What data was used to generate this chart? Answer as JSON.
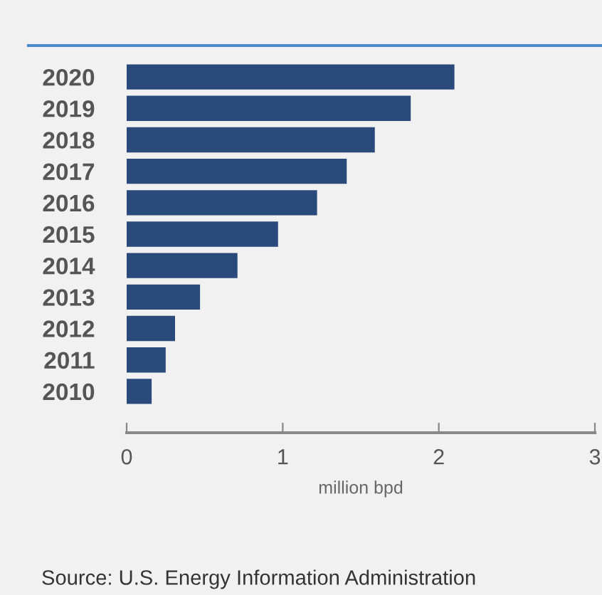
{
  "chart_data": {
    "type": "bar",
    "orientation": "horizontal",
    "categories": [
      "2020",
      "2019",
      "2018",
      "2017",
      "2016",
      "2015",
      "2014",
      "2013",
      "2012",
      "2011",
      "2010"
    ],
    "values": [
      2.1,
      1.82,
      1.59,
      1.41,
      1.22,
      0.97,
      0.71,
      0.47,
      0.31,
      0.25,
      0.16
    ],
    "color": "#2a4a7b",
    "xlim": [
      0,
      3
    ],
    "xticks": [
      0,
      1,
      2,
      3
    ],
    "xlabel": "million bpd",
    "grid": false,
    "annotations": [
      "Source: U.S. Energy Information Administration"
    ]
  }
}
